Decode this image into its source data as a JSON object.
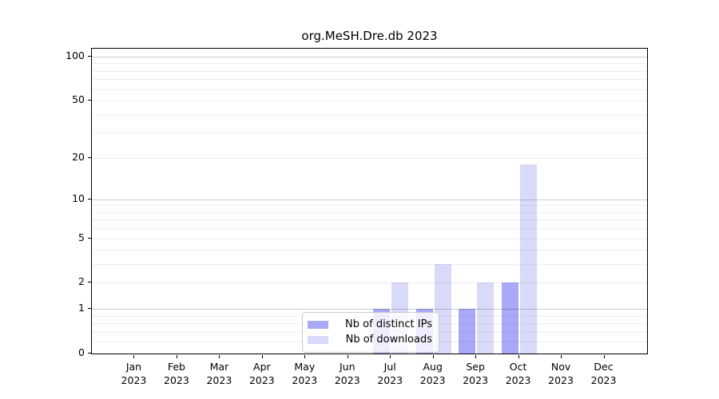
{
  "title": "org.MeSH.Dre.db 2023",
  "chart_data": {
    "type": "bar",
    "title": "org.MeSH.Dre.db 2023",
    "x_axis": {
      "months": [
        "Jan",
        "Feb",
        "Mar",
        "Apr",
        "May",
        "Jun",
        "Jul",
        "Aug",
        "Sep",
        "Oct",
        "Nov",
        "Dec"
      ],
      "year": "2023"
    },
    "y_axis": {
      "scale": "log10(value+1)",
      "ylim": [
        0,
        100
      ],
      "tick_values": [
        0,
        1,
        2,
        5,
        10,
        20,
        50,
        100
      ],
      "major_gridlines": [
        1,
        10,
        100
      ],
      "minor_gridlines": [
        0.2,
        0.4,
        0.6,
        0.8,
        2,
        3,
        4,
        5,
        6,
        7,
        8,
        9,
        20,
        30,
        40,
        50,
        60,
        70,
        80,
        90
      ],
      "grid": "on"
    },
    "series": [
      {
        "name": "Nb of distinct IPs",
        "color": "#a9a9f7",
        "values": [
          0,
          0,
          0,
          0,
          0,
          0,
          1,
          1,
          1,
          2,
          0,
          0
        ]
      },
      {
        "name": "Nb of downloads",
        "color": "#d9d9f9",
        "values": [
          0,
          0,
          0,
          0,
          0,
          0,
          2,
          3,
          2,
          18,
          0,
          0
        ]
      }
    ],
    "legend_position": "bottom-center-inside"
  },
  "legend": {
    "items": [
      {
        "label": "Nb of distinct IPs",
        "color": "#a9a9f7"
      },
      {
        "label": "Nb of downloads",
        "color": "#d9d9f9"
      }
    ]
  }
}
